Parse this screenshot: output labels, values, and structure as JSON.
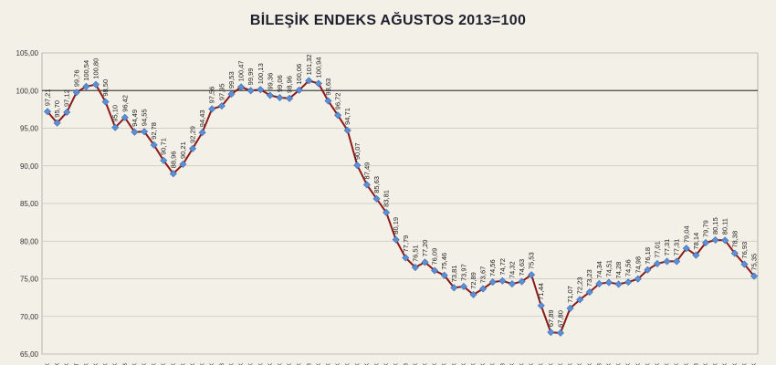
{
  "chart_data": {
    "type": "line",
    "title": "BİLEŞİK ENDEKS AĞUSTOS 2013=100",
    "xlabel": "",
    "ylabel": "",
    "ylim": [
      65,
      105
    ],
    "yticks": [
      "65,00",
      "70,00",
      "75,00",
      "80,00",
      "85,00",
      "90,00",
      "95,00",
      "100,00",
      "105,00"
    ],
    "grid": true,
    "reference_line": 100,
    "series": [
      {
        "values": [
          97.21,
          95.7,
          97.12,
          99.76,
          100.54,
          100.8,
          98.5,
          95.1,
          96.42,
          94.49,
          94.55,
          92.78,
          90.71,
          88.96,
          90.21,
          92.29,
          94.43,
          97.56,
          97.95,
          99.53,
          100.47,
          99.99,
          100.13,
          99.36,
          99.06,
          98.96,
          100.06,
          101.32,
          100.94,
          98.63,
          96.72,
          94.71,
          90.07,
          87.49,
          85.63,
          83.81,
          80.19,
          77.79,
          76.51,
          77.2,
          76.09,
          75.46,
          73.81,
          73.97,
          72.89,
          73.67,
          74.56,
          74.72,
          74.32,
          74.63,
          75.53,
          71.44,
          67.89,
          67.8,
          71.07,
          72.23,
          73.23,
          74.34,
          74.51,
          74.28,
          74.56,
          74.98,
          76.18,
          77.01,
          77.31,
          77.31,
          79.04,
          78.14,
          79.79,
          80.15,
          80.11,
          78.38,
          76.93,
          75.35
        ],
        "labels": [
          "97,21",
          "95,70",
          "97,12",
          "99,76",
          "100,54",
          "100,80",
          "98,50",
          "95,10",
          "96,42",
          "94,49",
          "94,55",
          "92,78",
          "90,71",
          "88,96",
          "90,21",
          "92,29",
          "94,43",
          "97,56",
          "97,95",
          "99,53",
          "100,47",
          "99,99",
          "100,13",
          "99,36",
          "99,06",
          "98,96",
          "100,06",
          "101,32",
          "100,94",
          "98,63",
          "96,72",
          "94,71",
          "90,07",
          "87,49",
          "85,63",
          "83,81",
          "80,19",
          "77,79",
          "76,51",
          "77,20",
          "76,09",
          "75,46",
          "73,81",
          "73,97",
          "72,89",
          "73,67",
          "74,56",
          "74,72",
          "74,32",
          "74,63",
          "75,53",
          "71,44",
          "67,89",
          "67,80",
          "71,07",
          "72,23",
          "73,23",
          "74,34",
          "74,51",
          "74,28",
          "74,56",
          "74,98",
          "76,18",
          "77,01",
          "77,31",
          "77,31",
          "79,04",
          "78,14",
          "79,79",
          "80,15",
          "80,11",
          "78,38",
          "76,93",
          "75,35"
        ]
      }
    ],
    "x_tick_labels": [
      "ĞK",
      "ЕК",
      "ĞK",
      "KT",
      "ĞK",
      "ĞK",
      "ŞK",
      "ĞK",
      "ŞB",
      "ĞK",
      "ĞK",
      "ĞK",
      "ĞK",
      "ĞK",
      "ĞK",
      "ĞK",
      "ĞK",
      "ĞK",
      "ŞB",
      "ĞK",
      "ĞK",
      "ĞK",
      "ĞK",
      "ĞK",
      "ĞK",
      "ĞK",
      "ĞK",
      "ŞB",
      "ĞK",
      "ĞK",
      "ĞK",
      "ĞK",
      "ĞK",
      "ĞK",
      "ĞK",
      "ĞK",
      "ĞK",
      "ŞB",
      "ĞK",
      "ĞK",
      "ĞK",
      "ĞK",
      "ĞK",
      "ĞK",
      "ĞK",
      "ĞK",
      "ĞK",
      "ŞB",
      "ĞK",
      "ĞK",
      "ĞK",
      "ĞK",
      "ĞK",
      "ĞK",
      "ĞK",
      "ĞK",
      "ĞK",
      "ŞB",
      "ĞK",
      "ĞK",
      "ĞK",
      "ĞK",
      "ĞK",
      "ĞK",
      "ĞK",
      "ĞK",
      "ĞK",
      "ŞB",
      "ĞK",
      "ĞK",
      "ĞK",
      "ĞK",
      "ĞK",
      "ĞK"
    ],
    "colors": {
      "line": "#8b1a1a",
      "marker": "#5b8fd6",
      "marker_stroke": "#3f6fb5",
      "grid": "#c8c5bc",
      "reference": "#444444"
    }
  }
}
